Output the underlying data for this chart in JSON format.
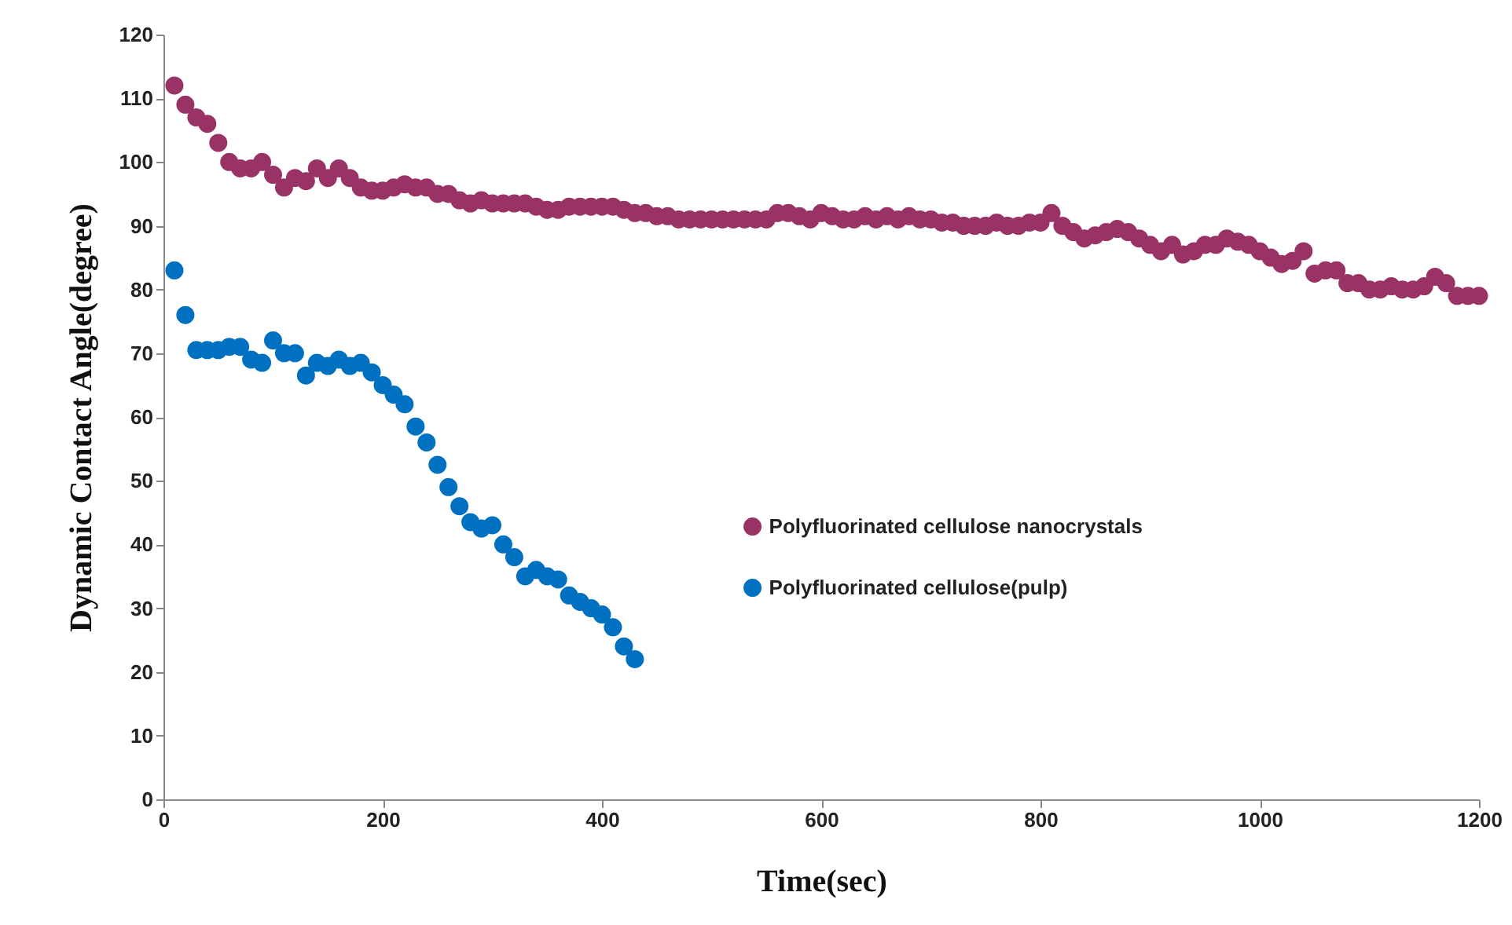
{
  "chart_data": {
    "type": "scatter",
    "xlabel": "Time(sec)",
    "ylabel": "Dynamic Contact Angle(degree)",
    "xlim": [
      0,
      1200
    ],
    "xticks": [
      0,
      200,
      400,
      600,
      800,
      1000,
      1200
    ],
    "ylim": [
      0,
      120
    ],
    "yticks": [
      0,
      10,
      20,
      30,
      40,
      50,
      60,
      70,
      80,
      90,
      100,
      110,
      120
    ],
    "grid": false,
    "legend": "right",
    "marker": "circle",
    "series": [
      {
        "name": "Polyfluorinated cellulose nanocrystals",
        "color": "#993366",
        "x": [
          10,
          20,
          30,
          40,
          50,
          60,
          70,
          80,
          90,
          100,
          110,
          120,
          130,
          140,
          150,
          160,
          170,
          180,
          190,
          200,
          210,
          220,
          230,
          240,
          250,
          260,
          270,
          280,
          290,
          300,
          310,
          320,
          330,
          340,
          350,
          360,
          370,
          380,
          390,
          400,
          410,
          420,
          430,
          440,
          450,
          460,
          470,
          480,
          490,
          500,
          510,
          520,
          530,
          540,
          550,
          560,
          570,
          580,
          590,
          600,
          610,
          620,
          630,
          640,
          650,
          660,
          670,
          680,
          690,
          700,
          710,
          720,
          730,
          740,
          750,
          760,
          770,
          780,
          790,
          800,
          810,
          820,
          830,
          840,
          850,
          860,
          870,
          880,
          890,
          900,
          910,
          920,
          930,
          940,
          950,
          960,
          970,
          980,
          990,
          1000,
          1010,
          1020,
          1030,
          1040,
          1050,
          1060,
          1070,
          1080,
          1090,
          1100,
          1110,
          1120,
          1130,
          1140,
          1150,
          1160,
          1170,
          1180,
          1190,
          1200
        ],
        "values": [
          112,
          109,
          107,
          106,
          103,
          100,
          99,
          99,
          100,
          98,
          96,
          97.5,
          97,
          99,
          97.5,
          99,
          97.5,
          96,
          95.5,
          95.5,
          96,
          96.5,
          96,
          96,
          95,
          95,
          94,
          93.5,
          94,
          93.5,
          93.5,
          93.5,
          93.5,
          93,
          92.5,
          92.5,
          93,
          93,
          93,
          93,
          93,
          92.5,
          92,
          92,
          91.5,
          91.5,
          91,
          91,
          91,
          91,
          91,
          91,
          91,
          91,
          91,
          92,
          92,
          91.5,
          91,
          92,
          91.5,
          91,
          91,
          91.5,
          91,
          91.5,
          91,
          91.5,
          91,
          91,
          90.5,
          90.5,
          90,
          90,
          90,
          90.5,
          90,
          90,
          90.5,
          90.5,
          92,
          90,
          89,
          88,
          88.5,
          89,
          89.5,
          89,
          88,
          87,
          86,
          87,
          85.5,
          86,
          87,
          87,
          88,
          87.5,
          87,
          86,
          85,
          84,
          84.5,
          86,
          82.5,
          83,
          83,
          81,
          81,
          80,
          80,
          80.5,
          80,
          80,
          80.5,
          82,
          81,
          79,
          79,
          79
        ]
      },
      {
        "name": "Polyfluorinated cellulose(pulp)",
        "color": "#0070c0",
        "x": [
          10,
          20,
          30,
          40,
          50,
          60,
          70,
          80,
          90,
          100,
          110,
          120,
          130,
          140,
          150,
          160,
          170,
          180,
          190,
          200,
          210,
          220,
          230,
          240,
          250,
          260,
          270,
          280,
          290,
          300,
          310,
          320,
          330,
          340,
          350,
          360,
          370,
          380,
          390,
          400,
          410,
          420,
          430
        ],
        "values": [
          83,
          76,
          70.5,
          70.5,
          70.5,
          71,
          71,
          69,
          68.5,
          72,
          70,
          70,
          66.5,
          68.5,
          68,
          69,
          68,
          68.5,
          67,
          65,
          63.5,
          62,
          58.5,
          56,
          52.5,
          49,
          46,
          43.5,
          42.5,
          43,
          40,
          38,
          35,
          36,
          35,
          34.5,
          32,
          31,
          30,
          29,
          27,
          24,
          22
        ]
      }
    ]
  }
}
